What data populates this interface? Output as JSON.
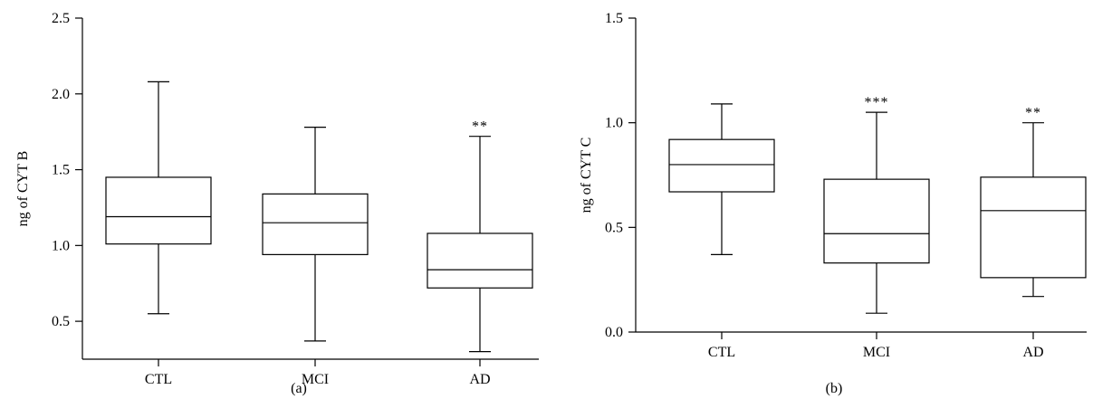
{
  "chart_data": [
    {
      "type": "box",
      "panel_label": "(a)",
      "ylabel": "ng of CYT B",
      "ylim": [
        0.25,
        2.5
      ],
      "yticks": [
        0.5,
        1.0,
        1.5,
        2.0,
        2.5
      ],
      "ytick_labels": [
        "0.5",
        "1.0",
        "1.5",
        "2.0",
        "2.5"
      ],
      "categories": [
        "CTL",
        "MCI",
        "AD"
      ],
      "boxes": [
        {
          "min": 0.55,
          "q1": 1.01,
          "median": 1.19,
          "q3": 1.45,
          "max": 2.08,
          "annotation": ""
        },
        {
          "min": 0.37,
          "q1": 0.94,
          "median": 1.15,
          "q3": 1.34,
          "max": 1.78,
          "annotation": ""
        },
        {
          "min": 0.3,
          "q1": 0.72,
          "median": 0.84,
          "q3": 1.08,
          "max": 1.72,
          "annotation": "**"
        }
      ]
    },
    {
      "type": "box",
      "panel_label": "(b)",
      "ylabel": "ng of CYT C",
      "ylim": [
        0.0,
        1.5
      ],
      "yticks": [
        0.0,
        0.5,
        1.0,
        1.5
      ],
      "ytick_labels": [
        "0.0",
        "0.5",
        "1.0",
        "1.5"
      ],
      "categories": [
        "CTL",
        "MCI",
        "AD"
      ],
      "boxes": [
        {
          "min": 0.37,
          "q1": 0.67,
          "median": 0.8,
          "q3": 0.92,
          "max": 1.09,
          "annotation": ""
        },
        {
          "min": 0.09,
          "q1": 0.33,
          "median": 0.47,
          "q3": 0.73,
          "max": 1.05,
          "annotation": "***"
        },
        {
          "min": 0.17,
          "q1": 0.26,
          "median": 0.58,
          "q3": 0.74,
          "max": 1.0,
          "annotation": "**"
        }
      ]
    }
  ]
}
